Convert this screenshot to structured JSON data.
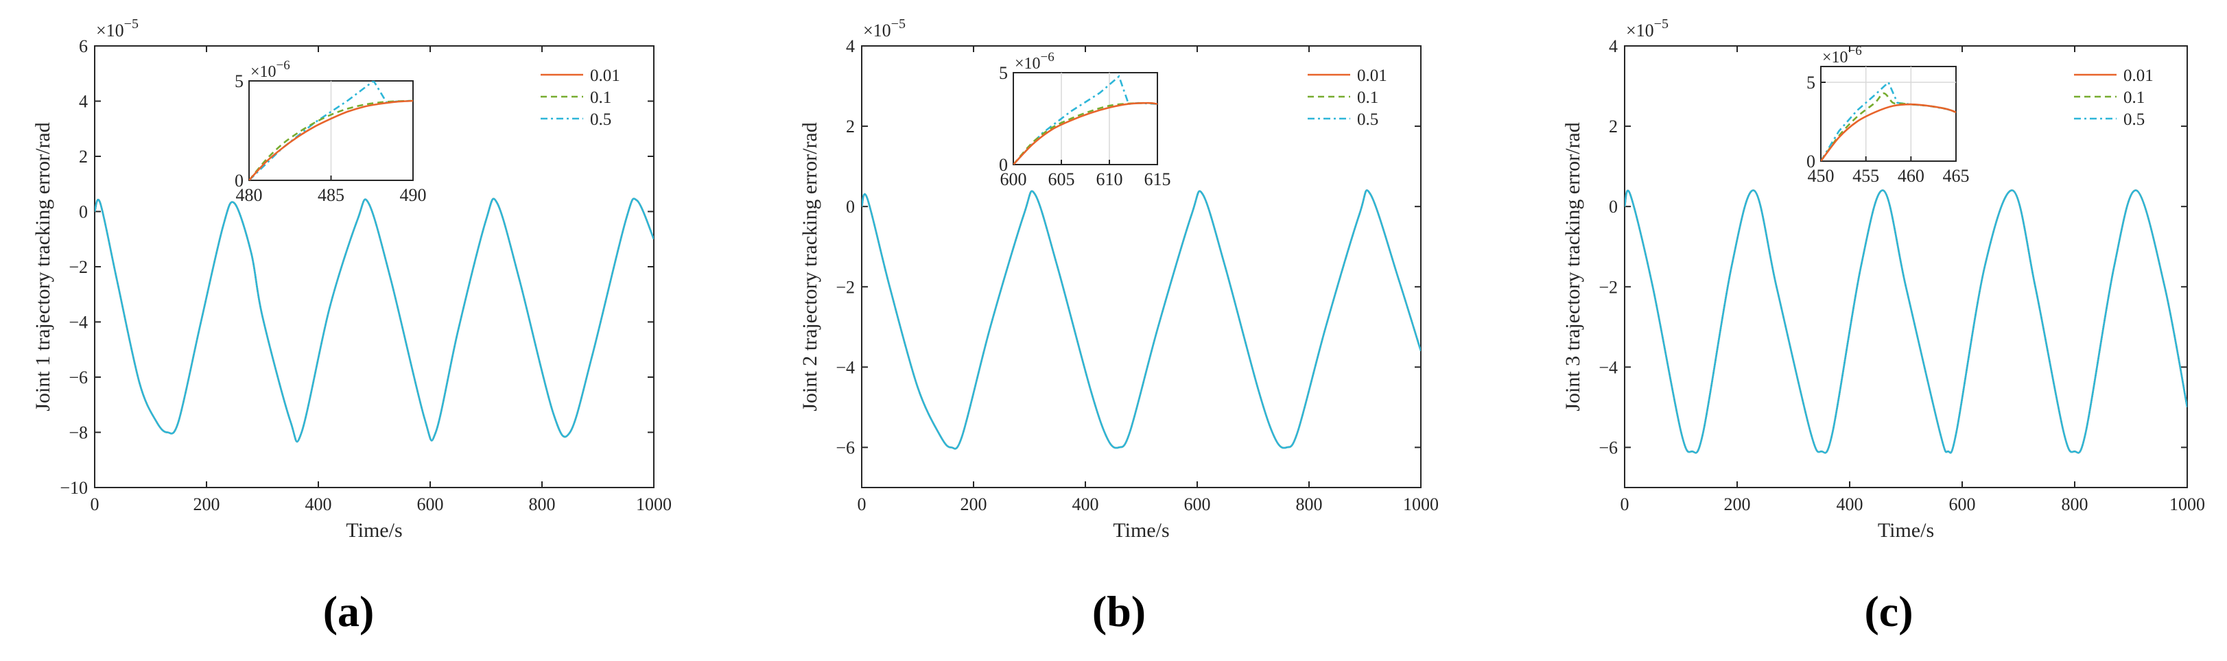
{
  "colors": {
    "s001": "#E8642B",
    "s01": "#77AC30",
    "s05": "#2EB6D8",
    "axis": "#262626",
    "grid": "#d9d9d9"
  },
  "panel_labels": [
    "(a)",
    "(b)",
    "(c)"
  ],
  "chart_data": [
    {
      "type": "line",
      "title": "",
      "xlabel": "Time/s",
      "ylabel": "Joint 1 trajectory tracking error/rad",
      "xlim": [
        0,
        1000
      ],
      "ylim": [
        -10,
        6
      ],
      "x_ticks": [
        0,
        200,
        400,
        600,
        800,
        1000
      ],
      "y_ticks": [
        -10,
        -8,
        -6,
        -4,
        -2,
        0,
        2,
        4,
        6
      ],
      "y_tick_labels": [
        "−10",
        "−8",
        "−6",
        "−4",
        "−2",
        "0",
        "2",
        "4",
        "6"
      ],
      "y_scale_label": "×10",
      "y_scale_exp": "−5",
      "legend": [
        "0.01",
        "0.1",
        "0.5"
      ],
      "series": [
        {
          "name": "0.01",
          "x": [
            0,
            10,
            40,
            80,
            110,
            130,
            150,
            190,
            230,
            250,
            280,
            300,
            350,
            370,
            420,
            470,
            490,
            530,
            590,
            610,
            650,
            700,
            720,
            760,
            820,
            850,
            890,
            950,
            970,
            1000
          ],
          "y": [
            0,
            0.3,
            -2.5,
            -6.2,
            -7.6,
            -8.0,
            -7.6,
            -4.0,
            -0.5,
            0.3,
            -1.5,
            -3.8,
            -7.6,
            -8.0,
            -3.5,
            -0.3,
            0.3,
            -2.5,
            -7.5,
            -8.0,
            -4.3,
            -0.3,
            0.3,
            -2.5,
            -7.3,
            -8.0,
            -5.2,
            -0.3,
            0.4,
            -1.0
          ]
        }
      ],
      "inset": {
        "xlim": [
          480,
          490
        ],
        "ylim": [
          0,
          5
        ],
        "x_ticks": [
          480,
          485,
          490
        ],
        "y_ticks": [
          0,
          5
        ],
        "y_scale_label": "×10",
        "y_scale_exp": "−6",
        "series": [
          {
            "name": "0.01",
            "x": [
              480,
              481,
              482,
              483,
              484,
              485,
              486,
              487,
              488,
              489,
              490
            ],
            "y": [
              0,
              0.9,
              1.6,
              2.2,
              2.7,
              3.1,
              3.45,
              3.7,
              3.85,
              3.95,
              4.0
            ]
          },
          {
            "name": "0.1",
            "x": [
              480,
              481,
              482,
              483,
              484,
              485,
              486,
              487,
              488,
              489,
              490
            ],
            "y": [
              0,
              1.0,
              1.8,
              2.4,
              2.9,
              3.3,
              3.6,
              3.8,
              3.92,
              3.98,
              4.0
            ]
          },
          {
            "name": "0.5",
            "x": [
              480,
              482,
              484,
              486,
              487.6,
              488.4,
              489,
              490
            ],
            "y": [
              0,
              1.6,
              2.9,
              4.0,
              5.0,
              3.9,
              3.97,
              4.0
            ]
          }
        ]
      }
    },
    {
      "type": "line",
      "title": "",
      "xlabel": "Time/s",
      "ylabel": "Joint 2 trajectory tracking error/rad",
      "xlim": [
        0,
        1000
      ],
      "ylim": [
        -7,
        4
      ],
      "x_ticks": [
        0,
        200,
        400,
        600,
        800,
        1000
      ],
      "y_ticks": [
        -6,
        -4,
        -2,
        0,
        2,
        4
      ],
      "y_tick_labels": [
        "−6",
        "−4",
        "−2",
        "0",
        "2",
        "4"
      ],
      "y_scale_label": "×10",
      "y_scale_exp": "−5",
      "legend": [
        "0.01",
        "0.1",
        "0.5"
      ],
      "series": [
        {
          "name": "0.01",
          "x": [
            0,
            10,
            50,
            100,
            140,
            160,
            180,
            230,
            290,
            310,
            350,
            410,
            440,
            460,
            480,
            530,
            590,
            610,
            650,
            710,
            740,
            760,
            780,
            830,
            890,
            910,
            960,
            1000
          ],
          "y": [
            0,
            0.2,
            -2.0,
            -4.5,
            -5.7,
            -6.0,
            -5.7,
            -3.0,
            -0.2,
            0.3,
            -1.5,
            -4.6,
            -5.8,
            -6.0,
            -5.6,
            -3.0,
            -0.2,
            0.3,
            -1.5,
            -4.6,
            -5.8,
            -6.0,
            -5.6,
            -3.0,
            -0.2,
            0.3,
            -1.8,
            -3.6
          ]
        }
      ],
      "inset": {
        "xlim": [
          600,
          615
        ],
        "ylim": [
          0,
          5
        ],
        "x_ticks": [
          600,
          605,
          610,
          615
        ],
        "y_ticks": [
          0,
          5
        ],
        "y_scale_label": "×10",
        "y_scale_exp": "−6",
        "series": [
          {
            "name": "0.01",
            "x": [
              600,
              602,
              604,
              606,
              608,
              610,
              612,
              614,
              615
            ],
            "y": [
              0,
              1.1,
              1.9,
              2.4,
              2.8,
              3.1,
              3.3,
              3.35,
              3.3
            ]
          },
          {
            "name": "0.1",
            "x": [
              600,
              602,
              604,
              606,
              608,
              610,
              612,
              614,
              615
            ],
            "y": [
              0,
              1.2,
              2.0,
              2.5,
              2.9,
              3.2,
              3.32,
              3.35,
              3.3
            ]
          },
          {
            "name": "0.5",
            "x": [
              600,
              603,
              606,
              609,
              611,
              612,
              613,
              615
            ],
            "y": [
              0,
              1.7,
              2.9,
              3.9,
              4.8,
              3.3,
              3.35,
              3.3
            ]
          }
        ]
      }
    },
    {
      "type": "line",
      "title": "",
      "xlabel": "Time/s",
      "ylabel": "Joint 3 trajectory tracking error/rad",
      "xlim": [
        0,
        1000
      ],
      "ylim": [
        -7,
        4
      ],
      "x_ticks": [
        0,
        200,
        400,
        600,
        800,
        1000
      ],
      "y_ticks": [
        -6,
        -4,
        -2,
        0,
        2,
        4
      ],
      "y_tick_labels": [
        "−6",
        "−4",
        "−2",
        "0",
        "2",
        "4"
      ],
      "y_scale_label": "×10",
      "y_scale_exp": "−5",
      "legend": [
        "0.01",
        "0.1",
        "0.5"
      ],
      "series": [
        {
          "name": "0.01",
          "x": [
            0,
            10,
            50,
            100,
            120,
            140,
            190,
            230,
            270,
            330,
            350,
            370,
            420,
            460,
            500,
            560,
            575,
            590,
            640,
            690,
            730,
            780,
            800,
            820,
            870,
            910,
            960,
            1000
          ],
          "y": [
            0,
            0.3,
            -2.0,
            -5.6,
            -6.1,
            -5.6,
            -1.5,
            0.4,
            -2.0,
            -5.6,
            -6.1,
            -5.6,
            -1.5,
            0.4,
            -2.0,
            -5.6,
            -6.1,
            -5.6,
            -1.5,
            0.4,
            -2.0,
            -5.6,
            -6.1,
            -5.6,
            -1.5,
            0.4,
            -2.0,
            -5.0
          ]
        }
      ],
      "inset": {
        "xlim": [
          450,
          465
        ],
        "ylim": [
          0,
          6
        ],
        "x_ticks": [
          450,
          455,
          460,
          465
        ],
        "y_ticks": [
          0,
          5
        ],
        "y_scale_label": "×10",
        "y_scale_exp": "−6",
        "series": [
          {
            "name": "0.01",
            "x": [
              450,
              452,
              454,
              456,
              458,
              460,
              462,
              464,
              465
            ],
            "y": [
              0,
              1.5,
              2.5,
              3.1,
              3.5,
              3.6,
              3.5,
              3.3,
              3.1
            ]
          },
          {
            "name": "0.1",
            "x": [
              450,
              452,
              454,
              456,
              457,
              458,
              459,
              460,
              462,
              464,
              465
            ],
            "y": [
              0,
              1.6,
              2.8,
              3.7,
              4.3,
              3.7,
              3.65,
              3.6,
              3.5,
              3.3,
              3.1
            ]
          },
          {
            "name": "0.5",
            "x": [
              450,
              452,
              454,
              456,
              457.5,
              458.5,
              460,
              462,
              464,
              465
            ],
            "y": [
              0,
              1.9,
              3.2,
              4.2,
              5.0,
              3.7,
              3.6,
              3.5,
              3.3,
              3.1
            ]
          }
        ]
      }
    }
  ]
}
